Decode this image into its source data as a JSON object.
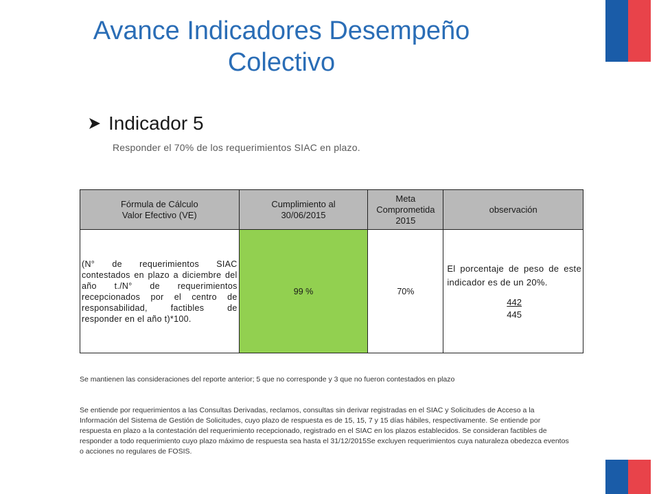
{
  "slide": {
    "title": "Avance Indicadores Desempeño Colectivo",
    "indicator_label": "Indicador 5",
    "subtitle": "Responder  el 70% de los requerimientos SIAC  en plazo."
  },
  "table": {
    "headers": [
      "Fórmula de Cálculo\nValor Efectivo  (VE)",
      "Cumplimiento al\n30/06/2015",
      "Meta\nComprometida\n2015",
      "observación"
    ],
    "row": {
      "formula": "(N° de requerimientos SIAC contestados en plazo a diciembre del año t./N° de requerimientos recepcionados por el centro de responsabilidad, factibles de responder en el  año t)*100.",
      "cumplimiento": "99 %",
      "meta": "70%",
      "observacion": "El porcentaje de peso de este indicador es de un 20%.",
      "fraction_numerator": "442",
      "fraction_denominator": "445"
    }
  },
  "notes": {
    "note1": "Se mantienen las consideraciones del reporte anterior;  5 que no corresponde y 3 que no fueron contestados en plazo",
    "note2": "Se entiende por requerimientos a las Consultas Derivadas, reclamos, consultas sin derivar  registradas en el SIAC y Solicitudes de Acceso a la Información del Sistema de Gestión de Solicitudes,  cuyo plazo de respuesta es de 15, 15, 7 y 15 días hábiles, respectivamente. Se entiende por respuesta en plazo a la contestación del requerimiento recepcionado, registrado en el SIAC en los plazos establecidos. Se consideran factibles de responder a todo requerimiento cuyo plazo máximo de respuesta sea hasta el 31/12/2015Se  excluyen  requerimientos cuya naturaleza  obedezca eventos o acciones no regulares de FOSIS."
  },
  "colors": {
    "title": "#2a6db6",
    "header_bg": "#b9b9b9",
    "highlight_green": "#92d050",
    "flag_blue": "#1a5ca8",
    "flag_red": "#e8434a"
  },
  "icons": {
    "bullet": "arrow-right-icon"
  }
}
